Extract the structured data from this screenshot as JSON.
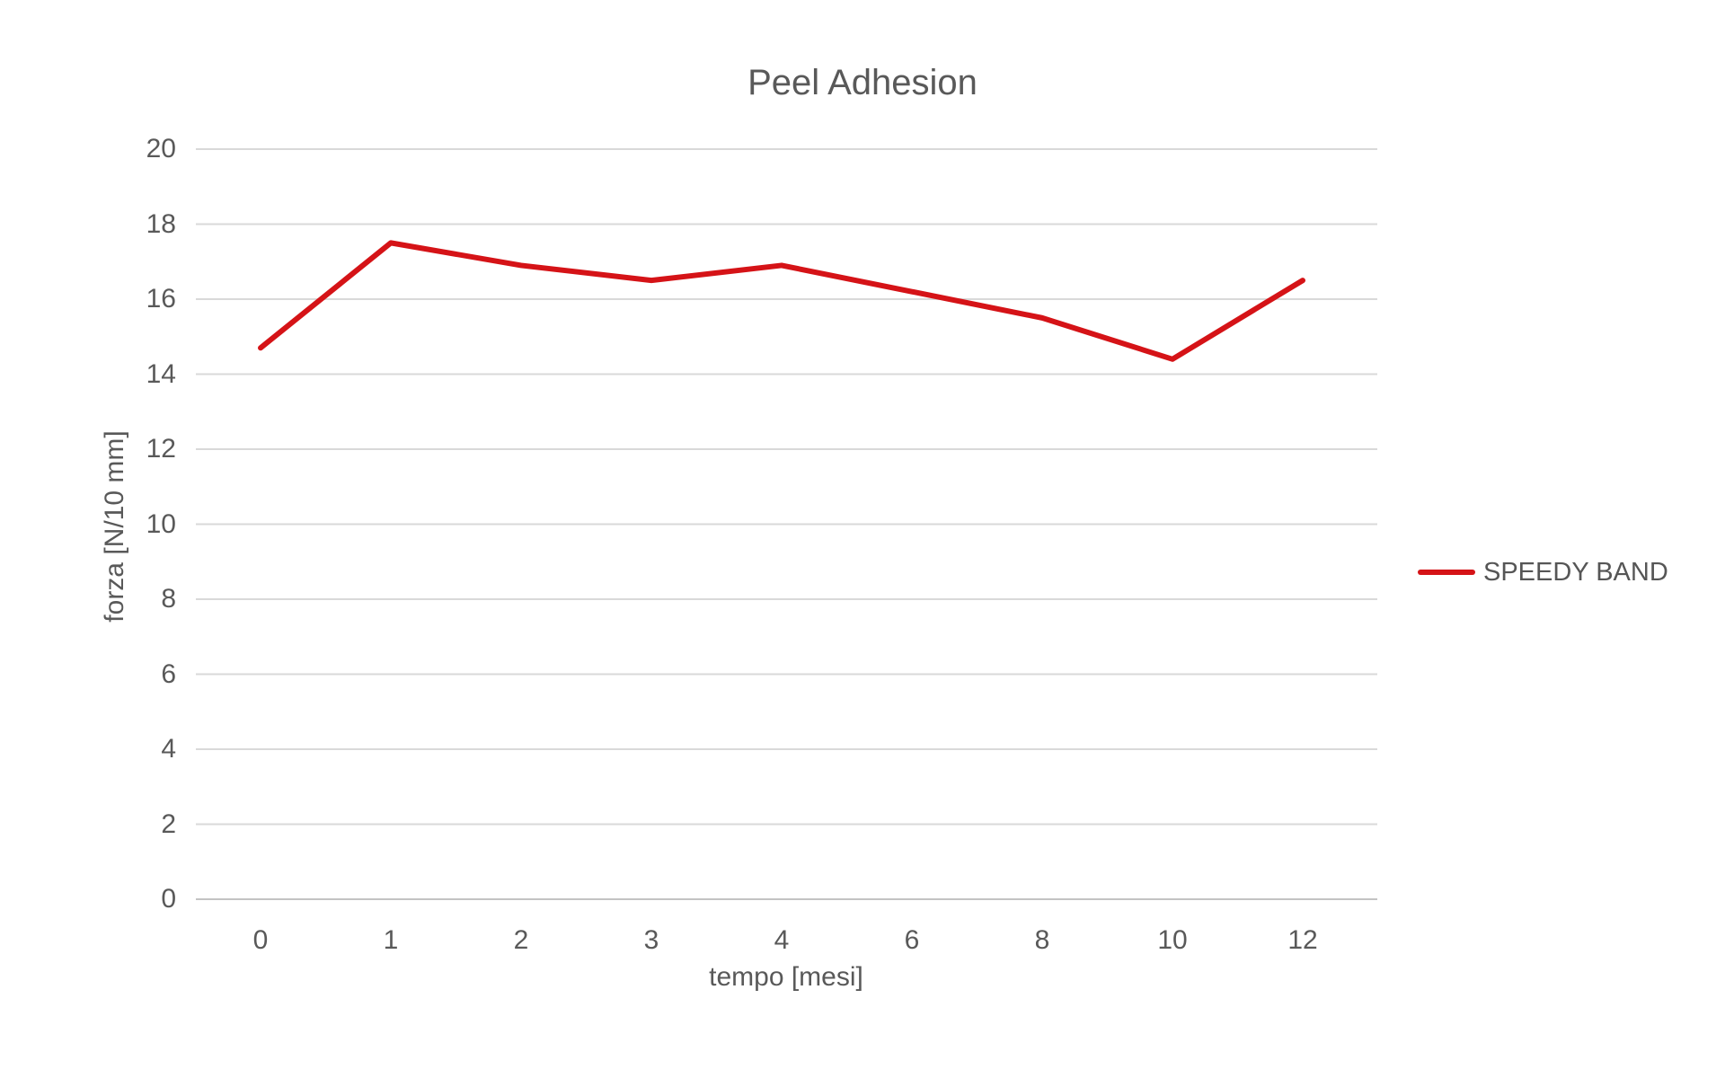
{
  "chart_data": {
    "type": "line",
    "title": "Peel Adhesion",
    "xlabel": "tempo [mesi]",
    "ylabel": "forza [N/10 mm]",
    "categories": [
      "0",
      "1",
      "2",
      "3",
      "4",
      "6",
      "8",
      "10",
      "12"
    ],
    "series": [
      {
        "name": "SPEEDY BAND",
        "color": "#d51317",
        "values": [
          14.7,
          17.5,
          16.9,
          16.5,
          16.9,
          16.2,
          15.5,
          14.4,
          16.5
        ]
      }
    ],
    "ylim": [
      0,
      20
    ],
    "ytick_step": 2,
    "grid": true,
    "legend_position": "right"
  },
  "styles": {
    "background": "#ffffff",
    "text_color": "#595959",
    "grid_color": "#d9d9d9",
    "axis_line_color": "#c3c3c3"
  }
}
